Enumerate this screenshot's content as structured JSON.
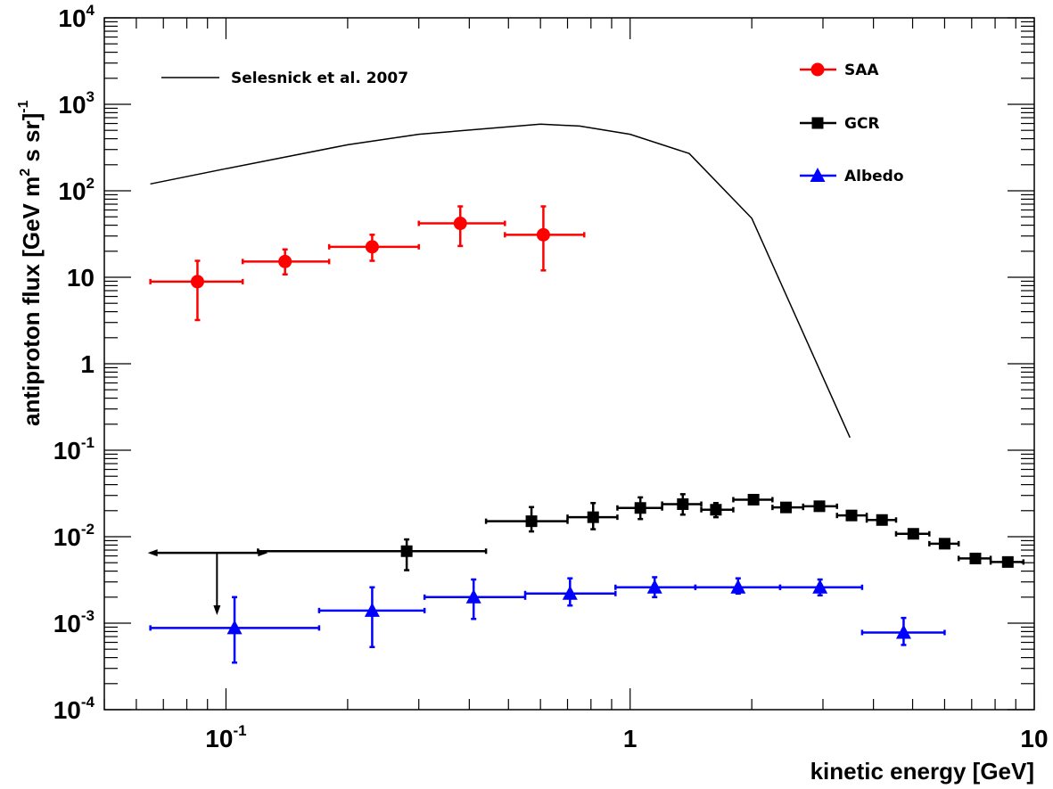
{
  "chart_data": {
    "type": "scatter",
    "xlabel": "kinetic energy [GeV]",
    "ylabel": "antiproton flux [GeV m^2 s sr]^-1",
    "xscale": "log",
    "yscale": "log",
    "xlim": [
      0.05,
      10
    ],
    "ylim": [
      0.0001,
      10000
    ],
    "grid": false,
    "legend_position": "top",
    "x_tick_labels": [
      {
        "value": 0.1,
        "base": "10",
        "exp": "-1"
      },
      {
        "value": 1,
        "base": "1",
        "exp": ""
      },
      {
        "value": 10,
        "base": "10",
        "exp": ""
      }
    ],
    "y_tick_labels": [
      {
        "value": 0.0001,
        "base": "10",
        "exp": "-4"
      },
      {
        "value": 0.001,
        "base": "10",
        "exp": "-3"
      },
      {
        "value": 0.01,
        "base": "10",
        "exp": "-2"
      },
      {
        "value": 0.1,
        "base": "10",
        "exp": "-1"
      },
      {
        "value": 1,
        "base": "1",
        "exp": ""
      },
      {
        "value": 10,
        "base": "10",
        "exp": ""
      },
      {
        "value": 100,
        "base": "10",
        "exp": "2"
      },
      {
        "value": 1000,
        "base": "10",
        "exp": "3"
      },
      {
        "value": 10000,
        "base": "10",
        "exp": "4"
      }
    ],
    "curve": {
      "name": "Selesnick et al. 2007",
      "color": "#000000",
      "points": [
        [
          0.065,
          120
        ],
        [
          0.1,
          180
        ],
        [
          0.2,
          340
        ],
        [
          0.3,
          450
        ],
        [
          0.6,
          590
        ],
        [
          0.75,
          560
        ],
        [
          1.0,
          450
        ],
        [
          1.4,
          270
        ],
        [
          2.0,
          48
        ],
        [
          3.5,
          0.14
        ]
      ]
    },
    "series": [
      {
        "name": "SAA",
        "color": "#ff0000",
        "marker": "circle",
        "points": [
          {
            "x": 0.085,
            "y": 8.9,
            "xlo": 0.065,
            "xhi": 0.11,
            "ylo": 3.2,
            "yhi": 15.5
          },
          {
            "x": 0.14,
            "y": 15.2,
            "xlo": 0.11,
            "xhi": 0.18,
            "ylo": 10.8,
            "yhi": 21
          },
          {
            "x": 0.23,
            "y": 22.5,
            "xlo": 0.18,
            "xhi": 0.3,
            "ylo": 15.5,
            "yhi": 31
          },
          {
            "x": 0.38,
            "y": 42,
            "xlo": 0.3,
            "xhi": 0.49,
            "ylo": 23,
            "yhi": 66
          },
          {
            "x": 0.61,
            "y": 31,
            "xlo": 0.49,
            "xhi": 0.77,
            "ylo": 12,
            "yhi": 66
          }
        ]
      },
      {
        "name": "GCR",
        "color": "#000000",
        "marker": "square",
        "upper_limit": {
          "y": 0.0065,
          "xlo": 0.065,
          "xhi": 0.125,
          "arrow_x": 0.095,
          "arrow_to": 0.0013
        },
        "points": [
          {
            "x": 0.28,
            "y": 0.0068,
            "xlo": 0.12,
            "xhi": 0.44,
            "ylo": 0.0041,
            "yhi": 0.0093
          },
          {
            "x": 0.57,
            "y": 0.0151,
            "xlo": 0.44,
            "xhi": 0.7,
            "ylo": 0.0115,
            "yhi": 0.022
          },
          {
            "x": 0.81,
            "y": 0.0168,
            "xlo": 0.7,
            "xhi": 0.93,
            "ylo": 0.0122,
            "yhi": 0.0245
          },
          {
            "x": 1.06,
            "y": 0.0215,
            "xlo": 0.93,
            "xhi": 1.2,
            "ylo": 0.016,
            "yhi": 0.0285
          },
          {
            "x": 1.35,
            "y": 0.0238,
            "xlo": 1.2,
            "xhi": 1.5,
            "ylo": 0.018,
            "yhi": 0.031
          },
          {
            "x": 1.63,
            "y": 0.0205,
            "xlo": 1.5,
            "xhi": 1.8,
            "ylo": 0.0168,
            "yhi": 0.0245
          },
          {
            "x": 2.02,
            "y": 0.0268,
            "xlo": 1.8,
            "xhi": 2.25,
            "ylo": 0.0245,
            "yhi": 0.029
          },
          {
            "x": 2.43,
            "y": 0.0218,
            "xlo": 2.25,
            "xhi": 2.68,
            "ylo": 0.02,
            "yhi": 0.0235
          },
          {
            "x": 2.94,
            "y": 0.0225,
            "xlo": 2.68,
            "xhi": 3.25,
            "ylo": 0.0205,
            "yhi": 0.0245
          },
          {
            "x": 3.53,
            "y": 0.0176,
            "xlo": 3.25,
            "xhi": 3.85,
            "ylo": 0.016,
            "yhi": 0.0192
          },
          {
            "x": 4.2,
            "y": 0.0156,
            "xlo": 3.85,
            "xhi": 4.55,
            "ylo": 0.0142,
            "yhi": 0.017
          },
          {
            "x": 5.02,
            "y": 0.0108,
            "xlo": 4.55,
            "xhi": 5.5,
            "ylo": 0.0098,
            "yhi": 0.0118
          },
          {
            "x": 6.0,
            "y": 0.0083,
            "xlo": 5.5,
            "xhi": 6.5,
            "ylo": 0.0076,
            "yhi": 0.009
          },
          {
            "x": 7.15,
            "y": 0.0056,
            "xlo": 6.5,
            "xhi": 7.8,
            "ylo": 0.0051,
            "yhi": 0.0061
          },
          {
            "x": 8.6,
            "y": 0.0051,
            "xlo": 7.8,
            "xhi": 9.4,
            "ylo": 0.0047,
            "yhi": 0.0055
          }
        ]
      },
      {
        "name": "Albedo",
        "color": "#0000ff",
        "marker": "triangle",
        "points": [
          {
            "x": 0.105,
            "y": 0.00088,
            "xlo": 0.065,
            "xhi": 0.17,
            "ylo": 0.00035,
            "yhi": 0.002
          },
          {
            "x": 0.23,
            "y": 0.0014,
            "xlo": 0.17,
            "xhi": 0.31,
            "ylo": 0.00053,
            "yhi": 0.0026
          },
          {
            "x": 0.41,
            "y": 0.002,
            "xlo": 0.31,
            "xhi": 0.55,
            "ylo": 0.00112,
            "yhi": 0.0032
          },
          {
            "x": 0.71,
            "y": 0.0022,
            "xlo": 0.55,
            "xhi": 0.92,
            "ylo": 0.0016,
            "yhi": 0.0033
          },
          {
            "x": 1.15,
            "y": 0.0026,
            "xlo": 0.92,
            "xhi": 1.45,
            "ylo": 0.002,
            "yhi": 0.0034
          },
          {
            "x": 1.85,
            "y": 0.0026,
            "xlo": 1.45,
            "xhi": 2.35,
            "ylo": 0.0022,
            "yhi": 0.0033
          },
          {
            "x": 2.95,
            "y": 0.0026,
            "xlo": 2.35,
            "xhi": 3.75,
            "ylo": 0.0021,
            "yhi": 0.0032
          },
          {
            "x": 4.75,
            "y": 0.00078,
            "xlo": 3.75,
            "xhi": 6.0,
            "ylo": 0.00056,
            "yhi": 0.00115
          }
        ]
      }
    ]
  }
}
